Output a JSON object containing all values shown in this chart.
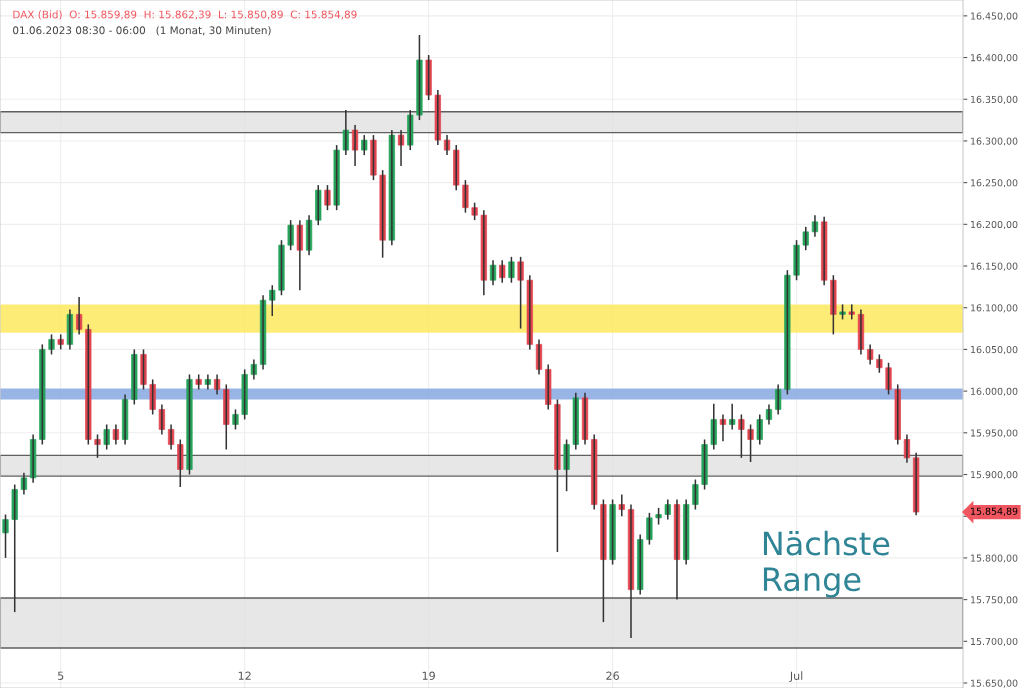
{
  "chart_data": {
    "type": "candlestick",
    "title": "DAX (Bid)  O: 15.859,89  H: 15.862,39  L: 15.850,89  C: 15.854,89",
    "subtitle": "01.06.2023 08:30 - 06:00   (1 Monat, 30 Minuten)",
    "annotations": [
      "Nächste\nRange",
      "15.854,89"
    ],
    "categories": [
      null,
      null,
      null,
      null,
      null,
      null,
      "5",
      null,
      null,
      null,
      null,
      null,
      null,
      null,
      null,
      null,
      null,
      null,
      null,
      null,
      null,
      null,
      null,
      null,
      null,
      null,
      "12",
      null,
      null,
      null,
      null,
      null,
      null,
      null,
      null,
      null,
      null,
      null,
      null,
      null,
      null,
      null,
      null,
      null,
      null,
      null,
      "19",
      null,
      null,
      null,
      null,
      null,
      null,
      null,
      null,
      null,
      null,
      null,
      null,
      null,
      null,
      null,
      null,
      null,
      null,
      null,
      "26",
      null,
      null,
      null,
      null,
      null,
      null,
      null,
      null,
      null,
      null,
      null,
      null,
      null,
      null,
      null,
      null,
      null,
      null,
      null,
      "Jul",
      null,
      null,
      null,
      null,
      null,
      null,
      null,
      null,
      null,
      null,
      null,
      null,
      null
    ],
    "ohlc": [
      [
        15830,
        15852,
        15800,
        15846
      ],
      [
        15846,
        15888,
        15735,
        15882
      ],
      [
        15882,
        15902,
        15876,
        15896
      ],
      [
        15896,
        15948,
        15890,
        15942
      ],
      [
        15942,
        16056,
        15936,
        16050
      ],
      [
        16050,
        16068,
        16044,
        16062
      ],
      [
        16062,
        16068,
        16050,
        16056
      ],
      [
        16056,
        16098,
        16050,
        16092
      ],
      [
        16092,
        16113,
        16068,
        16074
      ],
      [
        16074,
        16080,
        15936,
        15942
      ],
      [
        15942,
        15948,
        15920,
        15936
      ],
      [
        15936,
        15960,
        15930,
        15954
      ],
      [
        15954,
        15960,
        15936,
        15942
      ],
      [
        15942,
        15996,
        15936,
        15990
      ],
      [
        15990,
        16050,
        15984,
        16044
      ],
      [
        16044,
        16050,
        16002,
        16008
      ],
      [
        16008,
        16014,
        15972,
        15978
      ],
      [
        15978,
        15984,
        15948,
        15954
      ],
      [
        15954,
        15960,
        15930,
        15936
      ],
      [
        15936,
        15942,
        15885,
        15906
      ],
      [
        15906,
        16020,
        15900,
        16014
      ],
      [
        16014,
        16020,
        16002,
        16008
      ],
      [
        16008,
        16020,
        16002,
        16014
      ],
      [
        16014,
        16020,
        15996,
        16002
      ],
      [
        16002,
        16008,
        15930,
        15960
      ],
      [
        15960,
        15978,
        15954,
        15972
      ],
      [
        15972,
        16026,
        15966,
        16020
      ],
      [
        16020,
        16038,
        16014,
        16032
      ],
      [
        16032,
        16115,
        16026,
        16109
      ],
      [
        16109,
        16127,
        16090,
        16121
      ],
      [
        16121,
        16181,
        16115,
        16175
      ],
      [
        16175,
        16205,
        16169,
        16199
      ],
      [
        16199,
        16205,
        16121,
        16169
      ],
      [
        16169,
        16211,
        16163,
        16205
      ],
      [
        16205,
        16247,
        16199,
        16241
      ],
      [
        16241,
        16247,
        16217,
        16223
      ],
      [
        16223,
        16295,
        16217,
        16289
      ],
      [
        16289,
        16337,
        16283,
        16313
      ],
      [
        16313,
        16319,
        16270,
        16289
      ],
      [
        16289,
        16307,
        16283,
        16301
      ],
      [
        16301,
        16307,
        16253,
        16259
      ],
      [
        16259,
        16265,
        16160,
        16181
      ],
      [
        16181,
        16313,
        16175,
        16307
      ],
      [
        16307,
        16313,
        16270,
        16295
      ],
      [
        16295,
        16337,
        16289,
        16331
      ],
      [
        16331,
        16427,
        16325,
        16397
      ],
      [
        16397,
        16403,
        16349,
        16355
      ],
      [
        16355,
        16361,
        16295,
        16301
      ],
      [
        16301,
        16307,
        16283,
        16289
      ],
      [
        16289,
        16295,
        16241,
        16247
      ],
      [
        16247,
        16253,
        16214,
        16220
      ],
      [
        16220,
        16226,
        16205,
        16211
      ],
      [
        16211,
        16217,
        16115,
        16133
      ],
      [
        16133,
        16157,
        16127,
        16151
      ],
      [
        16151,
        16157,
        16130,
        16136
      ],
      [
        16136,
        16161,
        16130,
        16155
      ],
      [
        16155,
        16161,
        16075,
        16133
      ],
      [
        16133,
        16139,
        16050,
        16056
      ],
      [
        16056,
        16062,
        16020,
        16026
      ],
      [
        16026,
        16032,
        15978,
        15984
      ],
      [
        15984,
        15990,
        15807,
        15906
      ],
      [
        15906,
        15942,
        15880,
        15936
      ],
      [
        15936,
        15998,
        15930,
        15992
      ],
      [
        15992,
        15998,
        15936,
        15942
      ],
      [
        15942,
        15948,
        15858,
        15864
      ],
      [
        15864,
        15870,
        15723,
        15798
      ],
      [
        15798,
        15870,
        15792,
        15864
      ],
      [
        15864,
        15876,
        15850,
        15858
      ],
      [
        15858,
        15864,
        15704,
        15762
      ],
      [
        15762,
        15828,
        15756,
        15822
      ],
      [
        15822,
        15854,
        15816,
        15848
      ],
      [
        15848,
        15860,
        15840,
        15852
      ],
      [
        15852,
        15870,
        15846,
        15864
      ],
      [
        15864,
        15870,
        15750,
        15798
      ],
      [
        15798,
        15870,
        15792,
        15864
      ],
      [
        15864,
        15894,
        15858,
        15888
      ],
      [
        15888,
        15942,
        15882,
        15936
      ],
      [
        15936,
        15985,
        15930,
        15966
      ],
      [
        15966,
        15972,
        15940,
        15960
      ],
      [
        15960,
        15985,
        15954,
        15966
      ],
      [
        15966,
        15972,
        15920,
        15954
      ],
      [
        15954,
        15960,
        15915,
        15942
      ],
      [
        15942,
        15972,
        15936,
        15966
      ],
      [
        15966,
        15984,
        15960,
        15978
      ],
      [
        15978,
        16008,
        15972,
        16002
      ],
      [
        16002,
        16145,
        15996,
        16139
      ],
      [
        16139,
        16181,
        16133,
        16175
      ],
      [
        16175,
        16197,
        16169,
        16191
      ],
      [
        16191,
        16211,
        16185,
        16203
      ],
      [
        16203,
        16209,
        16127,
        16133
      ],
      [
        16133,
        16139,
        16068,
        16092
      ],
      [
        16092,
        16104,
        16086,
        16095
      ],
      [
        16095,
        16104,
        16086,
        16092
      ],
      [
        16092,
        16098,
        16044,
        16050
      ],
      [
        16050,
        16056,
        16032,
        16038
      ],
      [
        16038,
        16044,
        16022,
        16028
      ],
      [
        16028,
        16034,
        15996,
        16002
      ],
      [
        16002,
        16008,
        15936,
        15942
      ],
      [
        15942,
        15948,
        15914,
        15920
      ],
      [
        15920,
        15926,
        15851,
        15855
      ]
    ],
    "ylim": [
      15644,
      16469
    ],
    "yticks": [
      {
        "value": 15650,
        "label": "15.650,00"
      },
      {
        "value": 15700,
        "label": "15.700,00"
      },
      {
        "value": 15750,
        "label": "15.750,00"
      },
      {
        "value": 15800,
        "label": "15.800,00"
      },
      {
        "value": 15850,
        "label": null
      },
      {
        "value": 15900,
        "label": "15.900,00"
      },
      {
        "value": 15950,
        "label": "15.950,00"
      },
      {
        "value": 16000,
        "label": "16.000,00"
      },
      {
        "value": 16050,
        "label": "16.050,00"
      },
      {
        "value": 16100,
        "label": "16.100,00"
      },
      {
        "value": 16150,
        "label": "16.150,00"
      },
      {
        "value": 16200,
        "label": "16.200,00"
      },
      {
        "value": 16250,
        "label": "16.250,00"
      },
      {
        "value": 16300,
        "label": "16.300,00"
      },
      {
        "value": 16350,
        "label": "16.350,00"
      },
      {
        "value": 16400,
        "label": "16.400,00"
      },
      {
        "value": 16450,
        "label": "16.450,00"
      }
    ],
    "bands": [
      {
        "axis": "y",
        "from": 16310,
        "to": 16335,
        "color": "#e3e3e3"
      },
      {
        "axis": "y",
        "from": 15898,
        "to": 15923,
        "color": "#e3e3e3"
      },
      {
        "axis": "y",
        "from": 15692,
        "to": 15752,
        "color": "#e3e3e3"
      },
      {
        "axis": "y",
        "from": 16070,
        "to": 16104,
        "color": "#fde95e"
      },
      {
        "axis": "y",
        "from": 15990,
        "to": 16003,
        "color": "#87a8e0"
      }
    ],
    "grid": true
  }
}
